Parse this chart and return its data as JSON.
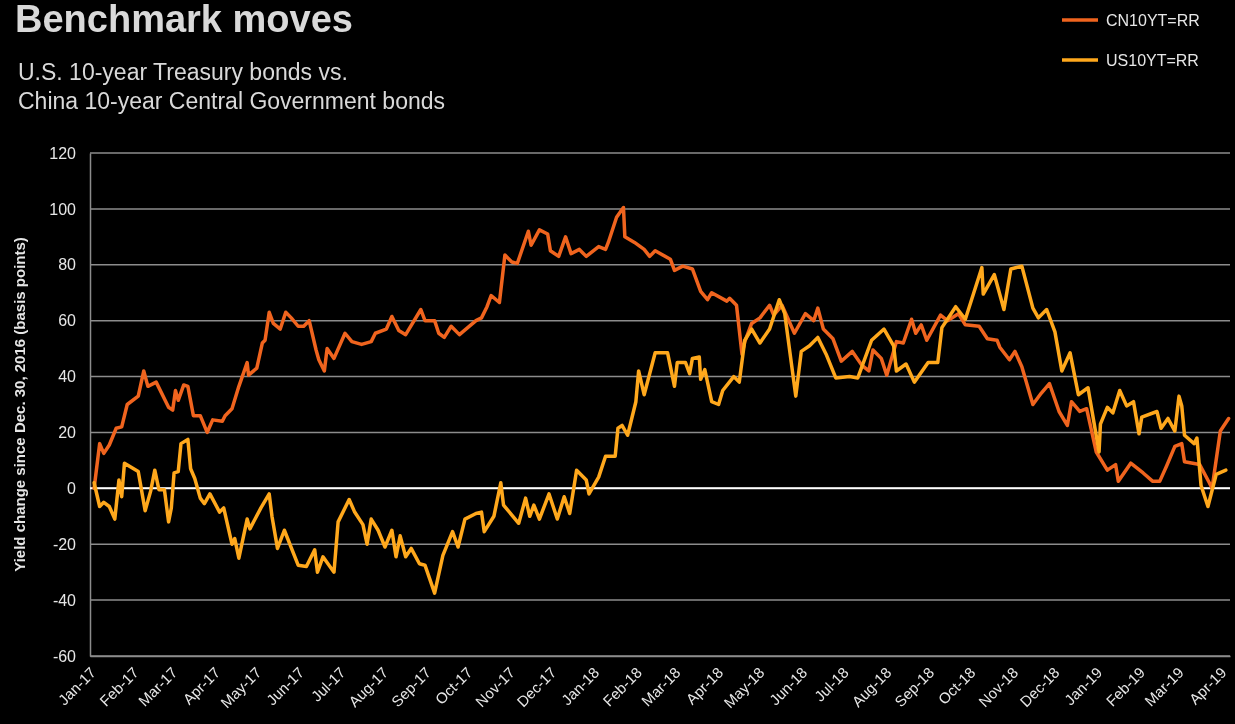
{
  "chart_data": {
    "type": "line",
    "title": "Benchmark moves",
    "subtitle": "U.S. 10-year Treasury bonds vs.\nChina 10-year Central Government bonds",
    "ylabel": "Yield change since Dec. 30, 2016 (basis points)",
    "xlim": [
      "2016-12-30",
      "2019-04-06"
    ],
    "xticks": [
      {
        "value": "2017-01-01",
        "label": "Jan-17"
      },
      {
        "value": "2017-02-01",
        "label": "Feb-17"
      },
      {
        "value": "2017-03-01",
        "label": "Mar-17"
      },
      {
        "value": "2017-04-01",
        "label": "Apr-17"
      },
      {
        "value": "2017-05-01",
        "label": "May-17"
      },
      {
        "value": "2017-06-01",
        "label": "Jun-17"
      },
      {
        "value": "2017-07-01",
        "label": "Jul-17"
      },
      {
        "value": "2017-08-01",
        "label": "Aug-17"
      },
      {
        "value": "2017-09-01",
        "label": "Sep-17"
      },
      {
        "value": "2017-10-01",
        "label": "Oct-17"
      },
      {
        "value": "2017-11-01",
        "label": "Nov-17"
      },
      {
        "value": "2017-12-01",
        "label": "Dec-17"
      },
      {
        "value": "2018-01-01",
        "label": "Jan-18"
      },
      {
        "value": "2018-02-01",
        "label": "Feb-18"
      },
      {
        "value": "2018-03-01",
        "label": "Mar-18"
      },
      {
        "value": "2018-04-01",
        "label": "Apr-18"
      },
      {
        "value": "2018-05-01",
        "label": "May-18"
      },
      {
        "value": "2018-06-01",
        "label": "Jun-18"
      },
      {
        "value": "2018-07-01",
        "label": "Jul-18"
      },
      {
        "value": "2018-08-01",
        "label": "Aug-18"
      },
      {
        "value": "2018-09-01",
        "label": "Sep-18"
      },
      {
        "value": "2018-10-01",
        "label": "Oct-18"
      },
      {
        "value": "2018-11-01",
        "label": "Nov-18"
      },
      {
        "value": "2018-12-01",
        "label": "Dec-18"
      },
      {
        "value": "2019-01-01",
        "label": "Jan-19"
      },
      {
        "value": "2019-02-01",
        "label": "Feb-19"
      },
      {
        "value": "2019-03-01",
        "label": "Mar-19"
      },
      {
        "value": "2019-04-01",
        "label": "Apr-19"
      }
    ],
    "ylim": [
      -60,
      120
    ],
    "yticks": [
      -60,
      -40,
      -20,
      0,
      20,
      40,
      60,
      80,
      100,
      120
    ],
    "grid": "y",
    "legend": "top right",
    "line_style": "solid",
    "marker": "none",
    "ref_lines": [
      {
        "axis": "y",
        "value": 0,
        "label": null,
        "color": "#ffffff"
      }
    ],
    "series": [
      {
        "name": "CN10YT=RR",
        "color": "#f0641e",
        "x": [
          "2017-01-02",
          "2017-01-06",
          "2017-01-09",
          "2017-01-13",
          "2017-01-18",
          "2017-01-22",
          "2017-01-26",
          "2017-02-03",
          "2017-02-07",
          "2017-02-10",
          "2017-02-16",
          "2017-02-25",
          "2017-02-28",
          "2017-03-02",
          "2017-03-04",
          "2017-03-08",
          "2017-03-11",
          "2017-03-15",
          "2017-03-20",
          "2017-03-25",
          "2017-03-29",
          "2017-04-05",
          "2017-04-07",
          "2017-04-12",
          "2017-04-17",
          "2017-04-23",
          "2017-04-24",
          "2017-04-30",
          "2017-05-04",
          "2017-05-06",
          "2017-05-09",
          "2017-05-12",
          "2017-05-17",
          "2017-05-21",
          "2017-05-25",
          "2017-05-30",
          "2017-06-03",
          "2017-06-07",
          "2017-06-12",
          "2017-06-14",
          "2017-06-18",
          "2017-06-20",
          "2017-06-25",
          "2017-07-03",
          "2017-07-08",
          "2017-07-15",
          "2017-07-22",
          "2017-07-25",
          "2017-08-02",
          "2017-08-06",
          "2017-08-11",
          "2017-08-16",
          "2017-08-27",
          "2017-08-30",
          "2017-09-06",
          "2017-09-09",
          "2017-09-13",
          "2017-09-18",
          "2017-09-24",
          "2017-10-06",
          "2017-10-10",
          "2017-10-14",
          "2017-10-17",
          "2017-10-23",
          "2017-10-27",
          "2017-11-01",
          "2017-11-05",
          "2017-11-13",
          "2017-11-15",
          "2017-11-21",
          "2017-11-27",
          "2017-11-29",
          "2017-12-05",
          "2017-12-10",
          "2017-12-14",
          "2017-12-20",
          "2017-12-25",
          "2018-01-03",
          "2018-01-08",
          "2018-01-10",
          "2018-01-16",
          "2018-01-21",
          "2018-01-22",
          "2018-01-29",
          "2018-02-05",
          "2018-02-09",
          "2018-02-13",
          "2018-02-24",
          "2018-02-27",
          "2018-03-05",
          "2018-03-12",
          "2018-03-18",
          "2018-03-23",
          "2018-03-26",
          "2018-04-06",
          "2018-04-08",
          "2018-04-13",
          "2018-04-17",
          "2018-04-19",
          "2018-04-24",
          "2018-04-30",
          "2018-05-07",
          "2018-05-10",
          "2018-05-16",
          "2018-05-25",
          "2018-06-02",
          "2018-06-08",
          "2018-06-11",
          "2018-06-15",
          "2018-06-22",
          "2018-06-28",
          "2018-07-06",
          "2018-07-13",
          "2018-07-18",
          "2018-07-21",
          "2018-07-27",
          "2018-07-31",
          "2018-08-07",
          "2018-08-12",
          "2018-08-18",
          "2018-08-21",
          "2018-08-25",
          "2018-08-29",
          "2018-09-08",
          "2018-09-13",
          "2018-09-21",
          "2018-09-26",
          "2018-10-06",
          "2018-10-12",
          "2018-10-19",
          "2018-10-21",
          "2018-10-28",
          "2018-11-01",
          "2018-11-06",
          "2018-11-14",
          "2018-11-20",
          "2018-11-26",
          "2018-12-03",
          "2018-12-09",
          "2018-12-12",
          "2018-12-18",
          "2018-12-23",
          "2018-12-30",
          "2019-01-07",
          "2019-01-13",
          "2019-01-15",
          "2019-01-24",
          "2019-02-02",
          "2019-02-09",
          "2019-02-14",
          "2019-02-19",
          "2019-02-25",
          "2019-03-02",
          "2019-03-04",
          "2019-03-15",
          "2019-03-22",
          "2019-03-24",
          "2019-03-30",
          "2019-04-05"
        ],
        "values": [
          0,
          16,
          12.5,
          15.5,
          21.5,
          22,
          30,
          33,
          42,
          36.5,
          38,
          29,
          28,
          35,
          31.5,
          37,
          36.5,
          26,
          26,
          20,
          24.5,
          24,
          26,
          28.5,
          36.5,
          45,
          40.5,
          43,
          52,
          53,
          63,
          59,
          57,
          63,
          61,
          58,
          58,
          60,
          49.5,
          46,
          42,
          50,
          46.5,
          55.5,
          52.5,
          51.5,
          52.5,
          55.5,
          57,
          61.5,
          56.5,
          55,
          64,
          60,
          60,
          55.5,
          54,
          58,
          55,
          60,
          61,
          65,
          69,
          66.5,
          83.5,
          81,
          80.5,
          92,
          87,
          92.5,
          91,
          85,
          83,
          90,
          84,
          85.5,
          83,
          86.5,
          85.5,
          88,
          97,
          100.5,
          90,
          88,
          85.5,
          83,
          85,
          82,
          78,
          79.5,
          78.5,
          70.5,
          67.5,
          70,
          67,
          68,
          65.5,
          48,
          52.5,
          59,
          61,
          65.5,
          62,
          65.5,
          55.5,
          62.5,
          60,
          64.5,
          57,
          53.5,
          45.5,
          49,
          44,
          42,
          49.5,
          46.5,
          40.5,
          52.5,
          52,
          60.5,
          55.5,
          58.5,
          53,
          62,
          60,
          62.5,
          58.5,
          58,
          53.5,
          53,
          50.5,
          46,
          49,
          43.5,
          30,
          34,
          37.5,
          27.5,
          22.5,
          31,
          27.5,
          28.5,
          13,
          6.5,
          8.5,
          2.5,
          9,
          5.5,
          2.5,
          2.5,
          8,
          15,
          16,
          9.5,
          8.5,
          2,
          0,
          20.5,
          25
        ]
      },
      {
        "name": "US10YT=RR",
        "color": "#ffa81c",
        "x": [
          "2017-01-02",
          "2017-01-06",
          "2017-01-09",
          "2017-01-13",
          "2017-01-17",
          "2017-01-20",
          "2017-01-22",
          "2017-01-24",
          "2017-02-03",
          "2017-02-08",
          "2017-02-12",
          "2017-02-15",
          "2017-02-18",
          "2017-02-22",
          "2017-02-25",
          "2017-02-27",
          "2017-03-01",
          "2017-03-04",
          "2017-03-06",
          "2017-03-11",
          "2017-03-13",
          "2017-03-16",
          "2017-03-20",
          "2017-03-23",
          "2017-03-27",
          "2017-04-03",
          "2017-04-06",
          "2017-04-12",
          "2017-04-14",
          "2017-04-17",
          "2017-04-23",
          "2017-04-25",
          "2017-05-03",
          "2017-05-09",
          "2017-05-11",
          "2017-05-15",
          "2017-05-20",
          "2017-05-30",
          "2017-06-05",
          "2017-06-11",
          "2017-06-13",
          "2017-06-17",
          "2017-06-25",
          "2017-06-28",
          "2017-07-06",
          "2017-07-10",
          "2017-07-16",
          "2017-07-19",
          "2017-07-22",
          "2017-07-27",
          "2017-08-01",
          "2017-08-06",
          "2017-08-09",
          "2017-08-12",
          "2017-08-16",
          "2017-08-20",
          "2017-08-26",
          "2017-08-30",
          "2017-09-06",
          "2017-09-12",
          "2017-09-19",
          "2017-09-23",
          "2017-09-28",
          "2017-10-06",
          "2017-10-10",
          "2017-10-12",
          "2017-10-19",
          "2017-10-24",
          "2017-10-26",
          "2017-11-06",
          "2017-11-11",
          "2017-11-14",
          "2017-11-17",
          "2017-11-21",
          "2017-11-28",
          "2017-12-04",
          "2017-12-09",
          "2017-12-13",
          "2017-12-18",
          "2017-12-25",
          "2017-12-27",
          "2018-01-03",
          "2018-01-08",
          "2018-01-15",
          "2018-01-17",
          "2018-01-20",
          "2018-01-24",
          "2018-01-30",
          "2018-02-01",
          "2018-02-05",
          "2018-02-09",
          "2018-02-13",
          "2018-02-22",
          "2018-02-27",
          "2018-03-01",
          "2018-03-07",
          "2018-03-10",
          "2018-03-12",
          "2018-03-17",
          "2018-03-18",
          "2018-03-21",
          "2018-03-26",
          "2018-03-31",
          "2018-04-03",
          "2018-04-11",
          "2018-04-15",
          "2018-04-19",
          "2018-04-24",
          "2018-04-30",
          "2018-05-07",
          "2018-05-14",
          "2018-05-18",
          "2018-05-26",
          "2018-05-30",
          "2018-06-05",
          "2018-06-11",
          "2018-06-17",
          "2018-06-24",
          "2018-07-04",
          "2018-07-10",
          "2018-07-20",
          "2018-07-29",
          "2018-08-05",
          "2018-08-07",
          "2018-08-14",
          "2018-08-20",
          "2018-08-30",
          "2018-09-06",
          "2018-09-09",
          "2018-09-19",
          "2018-09-26",
          "2018-10-08",
          "2018-10-09",
          "2018-10-17",
          "2018-10-24",
          "2018-10-29",
          "2018-11-06",
          "2018-11-14",
          "2018-11-18",
          "2018-11-24",
          "2018-11-30",
          "2018-12-05",
          "2018-12-11",
          "2018-12-17",
          "2018-12-24",
          "2019-01-01",
          "2019-01-02",
          "2019-01-07",
          "2019-01-11",
          "2019-01-16",
          "2019-01-21",
          "2019-01-26",
          "2019-01-30",
          "2019-02-01",
          "2019-02-12",
          "2019-02-15",
          "2019-02-20",
          "2019-02-25",
          "2019-02-28",
          "2019-03-02",
          "2019-03-04",
          "2019-03-11",
          "2019-03-13",
          "2019-03-16",
          "2019-03-21",
          "2019-03-27",
          "2019-04-03"
        ],
        "values": [
          2,
          -6.5,
          -5,
          -6.5,
          -11,
          3,
          -3,
          9,
          6,
          -8,
          -1,
          6.5,
          -0.5,
          -0.5,
          -12,
          -7,
          5.5,
          6,
          16,
          17.5,
          7,
          3.5,
          -3.5,
          -5.5,
          -2,
          -8.5,
          -7,
          -20,
          -18,
          -25,
          -11,
          -14.5,
          -7,
          -2,
          -10,
          -21.5,
          -15,
          -27.5,
          -28,
          -22,
          -30,
          -24.5,
          -30,
          -12,
          -4,
          -8.5,
          -13,
          -20,
          -11,
          -15,
          -21,
          -15,
          -24.5,
          -17,
          -24.5,
          -21.5,
          -27,
          -27.5,
          -37.5,
          -24,
          -15.5,
          -21,
          -11,
          -9,
          -8.5,
          -15.5,
          -10,
          2,
          -6,
          -12.5,
          -3.5,
          -10,
          -6,
          -11,
          -2,
          -11,
          -3,
          -9,
          6.5,
          3,
          -2,
          4,
          11.5,
          11.5,
          21.5,
          22.5,
          19,
          31,
          42,
          33.5,
          41,
          48.5,
          48.5,
          36.5,
          45,
          45,
          41,
          46.5,
          47,
          39,
          42.5,
          31,
          30,
          35,
          40,
          38,
          53,
          57,
          52,
          57,
          67.5,
          62.5,
          33,
          49,
          51,
          54,
          48,
          39.5,
          40,
          39.5,
          53,
          57,
          51,
          42,
          44.5,
          38,
          45,
          45,
          57.5,
          65,
          60.5,
          79,
          69.5,
          76.5,
          64,
          78.5,
          79.5,
          64.5,
          61,
          64,
          56,
          42,
          48.5,
          33.5,
          36,
          13,
          23,
          29,
          27,
          35,
          29.5,
          31,
          19.5,
          25.5,
          27.5,
          21.5,
          25,
          20.5,
          33,
          29.5,
          19,
          16,
          18,
          1,
          -6.5,
          5,
          6.5
        ]
      }
    ]
  }
}
